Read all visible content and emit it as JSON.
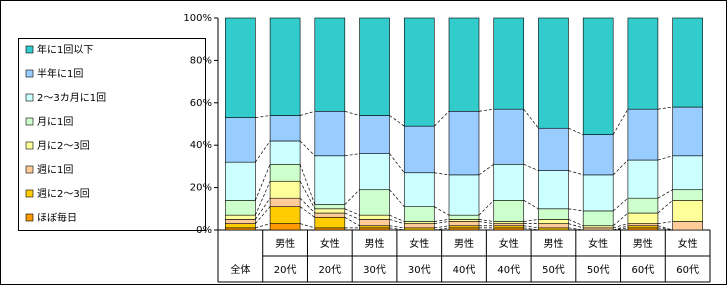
{
  "chart_data": {
    "type": "stacked_bar",
    "categories": [
      "全体",
      "20代",
      "20代",
      "30代",
      "30代",
      "40代",
      "40代",
      "50代",
      "50代",
      "60代",
      "60代"
    ],
    "category_groups": [
      null,
      "男性",
      "女性",
      "男性",
      "女性",
      "男性",
      "女性",
      "男性",
      "女性",
      "男性",
      "女性"
    ],
    "series": [
      {
        "name": "ほぼ毎日",
        "color": "#ff9900",
        "values": [
          1,
          3,
          1,
          1,
          0,
          1,
          1,
          0,
          0,
          1,
          0
        ]
      },
      {
        "name": "週に2～3回",
        "color": "#ffcc00",
        "values": [
          2,
          8,
          5,
          1,
          1,
          1,
          1,
          1,
          0,
          1,
          0
        ]
      },
      {
        "name": "週に1回",
        "color": "#ffcc99",
        "values": [
          2,
          4,
          2,
          3,
          2,
          2,
          1,
          2,
          1,
          1,
          4
        ]
      },
      {
        "name": "月に2～3回",
        "color": "#ffff99",
        "values": [
          2,
          8,
          2,
          2,
          1,
          1,
          1,
          2,
          1,
          5,
          10
        ]
      },
      {
        "name": "月に1回",
        "color": "#ccffcc",
        "values": [
          7,
          8,
          2,
          12,
          7,
          2,
          10,
          5,
          7,
          7,
          5
        ]
      },
      {
        "name": "2～3カ月に1回",
        "color": "#ccffff",
        "values": [
          18,
          11,
          23,
          17,
          16,
          19,
          17,
          18,
          17,
          18,
          16
        ]
      },
      {
        "name": "半年に1回",
        "color": "#99ccff",
        "values": [
          21,
          12,
          21,
          18,
          22,
          30,
          26,
          20,
          19,
          24,
          23
        ]
      },
      {
        "name": "年に1回以下",
        "color": "#33cccc",
        "values": [
          47,
          46,
          44,
          46,
          51,
          44,
          43,
          52,
          55,
          43,
          42
        ]
      }
    ],
    "ylim": [
      0,
      100
    ],
    "yticks": [
      {
        "value": 0,
        "label": "0%"
      },
      {
        "value": 20,
        "label": "20%"
      },
      {
        "value": 40,
        "label": "40%"
      },
      {
        "value": 60,
        "label": "60%"
      },
      {
        "value": 80,
        "label": "80%"
      },
      {
        "value": 100,
        "label": "100%"
      }
    ],
    "series_lines": true
  }
}
